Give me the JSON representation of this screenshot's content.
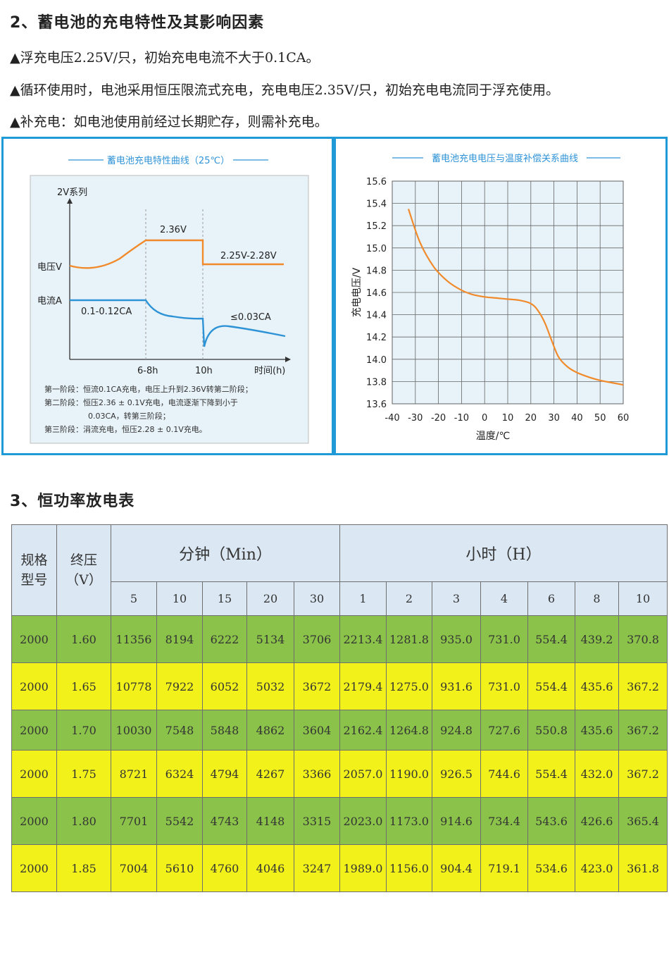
{
  "section2": {
    "heading": "2、蓄电池的充电特性及其影响因素",
    "bullets": [
      "▲浮充电压2.25V/只，初始充电电流不大于0.1CA。",
      "▲循环使用时，电池采用恒压限流式充电，充电电压2.35V/只，初始充电电流同于浮充使用。",
      "▲补充电：如电池使用前经过长期贮存，则需补充电。"
    ]
  },
  "left_chart": {
    "title": "蓄电池充电特性曲线（25℃）",
    "series_label": "2V系列",
    "voltage_label": "电压V",
    "current_label": "电流A",
    "v_peak_label": "2.36V",
    "v_float_label": "2.25V-2.28V",
    "i_init_label": "0.1-0.12CA",
    "i_end_label": "≤0.03CA",
    "x_ticks": [
      "6-8h",
      "10h"
    ],
    "x_axis_label": "时间(h)",
    "notes": [
      "第一阶段：恒流0.1CA充电，电压上升到2.36V转第二阶段；",
      "第二阶段：恒压2.36 ± 0.1V充电，电流逐渐下降到小于",
      "0.03CA，转第三阶段；",
      "第三阶段：涓流充电，恒压2.28 ± 0.1V充电。"
    ],
    "colors": {
      "voltage": "#f08a2b",
      "current": "#2e93d6"
    }
  },
  "chart_data": {
    "type": "line",
    "title": "蓄电池充电电压与温度补偿关系曲线",
    "xlabel": "温度/℃",
    "ylabel": "充电电压/V",
    "xlim": [
      -40,
      60
    ],
    "ylim": [
      13.6,
      15.6
    ],
    "x_ticks": [
      "-40",
      "-30",
      "-20",
      "-10",
      "0",
      "10",
      "20",
      "30",
      "40",
      "50",
      "60"
    ],
    "y_ticks": [
      "15.6",
      "15.4",
      "15.2",
      "15.0",
      "14.8",
      "14.6",
      "14.4",
      "14.2",
      "14.0",
      "13.8",
      "13.6"
    ],
    "grid": true,
    "x": [
      -33,
      -28,
      -22,
      -16,
      -10,
      -5,
      0,
      5,
      10,
      15,
      20,
      23,
      26,
      29,
      32,
      36,
      40,
      45,
      50,
      55,
      60
    ],
    "y": [
      15.35,
      15.05,
      14.83,
      14.7,
      14.62,
      14.58,
      14.56,
      14.55,
      14.54,
      14.53,
      14.5,
      14.44,
      14.33,
      14.17,
      14.02,
      13.93,
      13.88,
      13.84,
      13.81,
      13.79,
      13.77
    ],
    "color": "#f08a2b"
  },
  "section3": {
    "heading": "3、恒功率放电表",
    "headers": {
      "spec": "规格\n型号",
      "voltage": "终压\n（V）",
      "minutes": "分钟（Min）",
      "hours": "小时（H）",
      "minute_cols": [
        "5",
        "10",
        "15",
        "20",
        "30"
      ],
      "hour_cols": [
        "1",
        "2",
        "3",
        "4",
        "6",
        "8",
        "10"
      ]
    },
    "rows": [
      [
        "2000",
        "1.60",
        "11356",
        "8194",
        "6222",
        "5134",
        "3706",
        "2213.4",
        "1281.8",
        "935.0",
        "731.0",
        "554.4",
        "439.2",
        "370.8"
      ],
      [
        "2000",
        "1.65",
        "10778",
        "7922",
        "6052",
        "5032",
        "3672",
        "2179.4",
        "1275.0",
        "931.6",
        "731.0",
        "554.4",
        "435.6",
        "367.2"
      ],
      [
        "2000",
        "1.70",
        "10030",
        "7548",
        "5848",
        "4862",
        "3604",
        "2162.4",
        "1264.8",
        "924.8",
        "727.6",
        "550.8",
        "435.6",
        "367.2"
      ],
      [
        "2000",
        "1.75",
        "8721",
        "6324",
        "4794",
        "4267",
        "3366",
        "2057.0",
        "1190.0",
        "926.5",
        "744.6",
        "554.4",
        "432.0",
        "367.2"
      ],
      [
        "2000",
        "1.80",
        "7701",
        "5542",
        "4743",
        "4148",
        "3315",
        "2023.0",
        "1173.0",
        "914.6",
        "734.4",
        "543.6",
        "426.6",
        "365.4"
      ],
      [
        "2000",
        "1.85",
        "7004",
        "5610",
        "4760",
        "4046",
        "3247",
        "1989.0",
        "1156.0",
        "904.4",
        "719.1",
        "534.6",
        "423.0",
        "361.8"
      ]
    ],
    "row_colors": [
      "#8bc34a",
      "#f2f21a"
    ]
  }
}
